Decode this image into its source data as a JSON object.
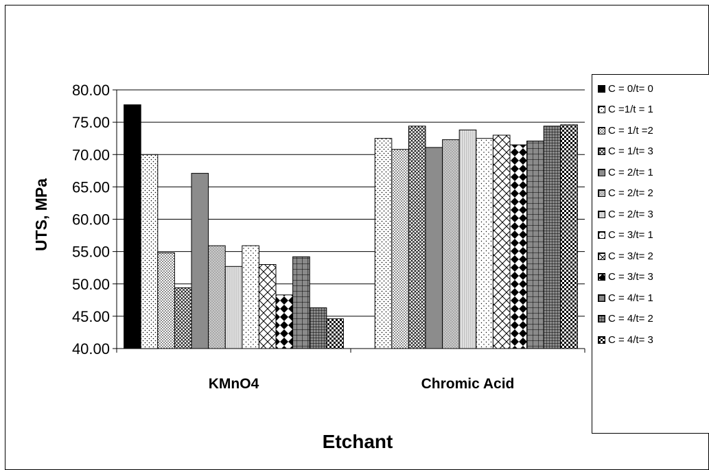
{
  "chart_data": {
    "type": "bar",
    "xlabel": "Etchant",
    "ylabel": "UTS, MPa",
    "ylim": [
      40,
      80
    ],
    "yticks": [
      "40.00",
      "45.00",
      "50.00",
      "55.00",
      "60.00",
      "65.00",
      "70.00",
      "75.00",
      "80.00"
    ],
    "categories": [
      "KMnO4",
      "Chromic Acid"
    ],
    "grid": "horizontal",
    "legend_position": "right",
    "series": [
      {
        "name": "C = 0/t= 0",
        "values": [
          77.7,
          null
        ],
        "fill": "solid-black"
      },
      {
        "name": "C =1/t = 1",
        "values": [
          70.0,
          72.5
        ],
        "fill": "dots-sparse"
      },
      {
        "name": "C = 1/t =2",
        "values": [
          54.8,
          70.8
        ],
        "fill": "dots-dense"
      },
      {
        "name": "C = 1/t= 3",
        "values": [
          49.4,
          74.4
        ],
        "fill": "crosshatch-fine"
      },
      {
        "name": "C = 2/t= 1",
        "values": [
          67.1,
          71.1
        ],
        "fill": "gray-solid"
      },
      {
        "name": "C = 2/t= 2",
        "values": [
          55.9,
          72.3
        ],
        "fill": "gray-dots"
      },
      {
        "name": "C = 2/t= 3",
        "values": [
          52.7,
          73.8
        ],
        "fill": "gray-fine"
      },
      {
        "name": "C = 3/t= 1",
        "values": [
          55.9,
          72.5
        ],
        "fill": "dots-sparse-2"
      },
      {
        "name": "C = 3/t= 2",
        "values": [
          53.0,
          73.0
        ],
        "fill": "diag-cross"
      },
      {
        "name": "C = 3/t= 3",
        "values": [
          48.3,
          71.5
        ],
        "fill": "diamonds"
      },
      {
        "name": "C = 4/t= 1",
        "values": [
          54.2,
          72.1
        ],
        "fill": "grid-large"
      },
      {
        "name": "C = 4/t= 2",
        "values": [
          46.3,
          74.4
        ],
        "fill": "grid-small"
      },
      {
        "name": "C = 4/t= 3",
        "values": [
          44.6,
          74.6
        ],
        "fill": "checker"
      }
    ]
  }
}
